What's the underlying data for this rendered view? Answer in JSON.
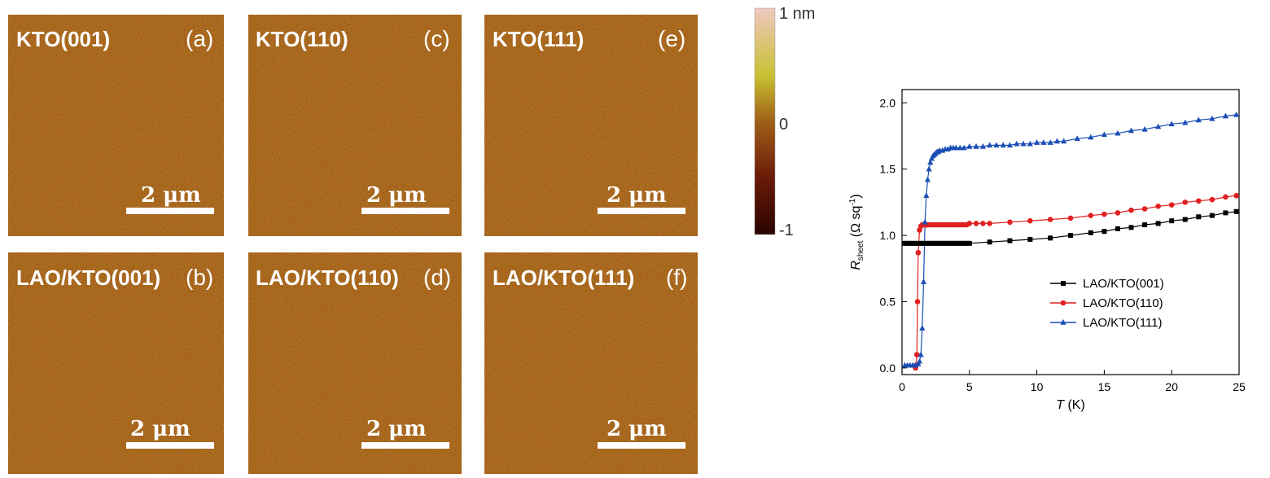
{
  "afm_panels": [
    {
      "sample": "KTO(001)",
      "panel": "(a)",
      "scalebar": "2 μm"
    },
    {
      "sample": "KTO(110)",
      "panel": "(c)",
      "scalebar": "2 μm"
    },
    {
      "sample": "KTO(111)",
      "panel": "(e)",
      "scalebar": "2 μm"
    },
    {
      "sample": "LAO/KTO(001)",
      "panel": "(b)",
      "scalebar": "2 μm"
    },
    {
      "sample": "LAO/KTO(110)",
      "panel": "(d)",
      "scalebar": "2 μm"
    },
    {
      "sample": "LAO/KTO(111)",
      "panel": "(f)",
      "scalebar": "2 μm"
    }
  ],
  "colorbar": {
    "labels": [
      "1 nm",
      "0",
      "-1"
    ],
    "colors": [
      "#f0c8c0",
      "#c8c030",
      "#a06018",
      "#6a1a08",
      "#2a0400"
    ]
  },
  "afm_colors": {
    "low": "#6e2a08",
    "mid": "#a0561a",
    "high": "#c8b030"
  },
  "chart_data": {
    "type": "line",
    "xlabel_main": "T",
    "xlabel_unit": " (K)",
    "ylabel_main": "R",
    "ylabel_sub": "sheet",
    "ylabel_unit": " (Ω sq",
    "ylabel_sup": "-1",
    "ylabel_close": ")",
    "xlim": [
      0,
      25
    ],
    "ylim": [
      -0.05,
      2.1
    ],
    "xticks": [
      "0",
      "5",
      "10",
      "15",
      "20",
      "25"
    ],
    "yticks": [
      "0.0",
      "0.5",
      "1.0",
      "1.5",
      "2.0"
    ],
    "legend_position": "bottom-right",
    "series": [
      {
        "name": "LAO/KTO(001)",
        "color": "#000000",
        "marker": "square",
        "x": [
          0.2,
          0.4,
          0.6,
          0.8,
          1.0,
          1.2,
          1.4,
          1.6,
          1.8,
          2.0,
          2.2,
          2.4,
          2.6,
          2.8,
          3.0,
          3.2,
          3.4,
          3.6,
          3.8,
          4.0,
          4.2,
          4.4,
          4.6,
          4.8,
          5.0,
          6.5,
          8.0,
          9.5,
          11.0,
          12.5,
          14.0,
          15.0,
          16.0,
          17.0,
          18.0,
          19.0,
          20.0,
          21.0,
          22.0,
          23.0,
          24.0,
          24.8
        ],
        "y": [
          0.94,
          0.94,
          0.94,
          0.94,
          0.94,
          0.94,
          0.94,
          0.94,
          0.94,
          0.94,
          0.94,
          0.94,
          0.94,
          0.94,
          0.94,
          0.94,
          0.94,
          0.94,
          0.94,
          0.94,
          0.94,
          0.94,
          0.94,
          0.94,
          0.94,
          0.95,
          0.96,
          0.97,
          0.98,
          1.0,
          1.02,
          1.03,
          1.05,
          1.06,
          1.08,
          1.09,
          1.11,
          1.12,
          1.14,
          1.15,
          1.17,
          1.18
        ]
      },
      {
        "name": "LAO/KTO(110)",
        "color": "#e02020",
        "marker": "circle",
        "x": [
          1.0,
          1.05,
          1.1,
          1.15,
          1.2,
          1.3,
          1.4,
          1.5,
          1.6,
          1.7,
          1.8,
          1.9,
          2.0,
          2.2,
          2.4,
          2.6,
          2.8,
          3.0,
          3.2,
          3.4,
          3.6,
          3.8,
          4.0,
          4.2,
          4.4,
          4.6,
          4.8,
          5.0,
          5.5,
          6.0,
          6.5,
          8.0,
          9.5,
          11.0,
          12.5,
          14.0,
          15.0,
          16.0,
          17.0,
          18.0,
          19.0,
          20.0,
          21.0,
          22.0,
          23.0,
          24.0,
          24.8
        ],
        "y": [
          0.0,
          0.02,
          0.1,
          0.5,
          0.87,
          1.04,
          1.07,
          1.08,
          1.08,
          1.08,
          1.08,
          1.08,
          1.08,
          1.08,
          1.08,
          1.08,
          1.08,
          1.08,
          1.08,
          1.08,
          1.08,
          1.08,
          1.08,
          1.08,
          1.08,
          1.08,
          1.08,
          1.09,
          1.09,
          1.09,
          1.09,
          1.1,
          1.11,
          1.12,
          1.13,
          1.15,
          1.16,
          1.17,
          1.19,
          1.2,
          1.22,
          1.23,
          1.25,
          1.26,
          1.27,
          1.29,
          1.3
        ]
      },
      {
        "name": "LAO/KTO(111)",
        "color": "#1a4fb5",
        "marker": "triangle",
        "x": [
          0.2,
          0.4,
          0.6,
          0.8,
          1.0,
          1.2,
          1.3,
          1.4,
          1.5,
          1.6,
          1.7,
          1.8,
          1.9,
          2.0,
          2.1,
          2.2,
          2.3,
          2.4,
          2.5,
          2.6,
          2.7,
          2.8,
          3.0,
          3.2,
          3.4,
          3.6,
          3.8,
          4.0,
          4.3,
          4.6,
          5.0,
          5.5,
          6.0,
          6.5,
          7.0,
          7.5,
          8.0,
          8.5,
          9.0,
          9.5,
          10.0,
          10.5,
          11.0,
          11.5,
          12.0,
          13.0,
          14.0,
          15.0,
          16.0,
          17.0,
          18.0,
          19.0,
          20.0,
          21.0,
          22.0,
          23.0,
          24.0,
          24.8
        ],
        "y": [
          0.02,
          0.02,
          0.02,
          0.02,
          0.02,
          0.03,
          0.05,
          0.1,
          0.3,
          0.65,
          1.1,
          1.3,
          1.42,
          1.5,
          1.55,
          1.58,
          1.6,
          1.61,
          1.62,
          1.63,
          1.63,
          1.64,
          1.64,
          1.65,
          1.65,
          1.66,
          1.66,
          1.66,
          1.66,
          1.66,
          1.67,
          1.67,
          1.67,
          1.68,
          1.68,
          1.68,
          1.68,
          1.69,
          1.69,
          1.69,
          1.7,
          1.7,
          1.7,
          1.71,
          1.71,
          1.73,
          1.74,
          1.76,
          1.77,
          1.79,
          1.8,
          1.82,
          1.84,
          1.85,
          1.87,
          1.88,
          1.9,
          1.91
        ]
      }
    ]
  }
}
